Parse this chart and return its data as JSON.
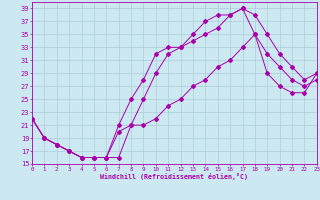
{
  "xlabel": "Windchill (Refroidissement éolien,°C)",
  "bg_color": "#cce8f0",
  "grid_color": "#aaccd8",
  "line_color": "#aa00aa",
  "xlim": [
    0,
    23
  ],
  "ylim": [
    15,
    40
  ],
  "xticks": [
    0,
    1,
    2,
    3,
    4,
    5,
    6,
    7,
    8,
    9,
    10,
    11,
    12,
    13,
    14,
    15,
    16,
    17,
    18,
    19,
    20,
    21,
    22,
    23
  ],
  "yticks": [
    15,
    17,
    19,
    21,
    23,
    25,
    27,
    29,
    31,
    33,
    35,
    37,
    39
  ],
  "line1_x": [
    0,
    1,
    2,
    3,
    4,
    5,
    6,
    7,
    8,
    9,
    10,
    11,
    12,
    13,
    14,
    15,
    16,
    17,
    18,
    19,
    20,
    21,
    22,
    23
  ],
  "line1_y": [
    22,
    19,
    18,
    17,
    16,
    16,
    16,
    20,
    21,
    25,
    29,
    32,
    33,
    35,
    37,
    38,
    38,
    39,
    38,
    35,
    32,
    30,
    28,
    29
  ],
  "line2_x": [
    0,
    1,
    2,
    3,
    4,
    5,
    6,
    7,
    8,
    9,
    10,
    11,
    12,
    13,
    14,
    15,
    16,
    17,
    18,
    19,
    20,
    21,
    22,
    23
  ],
  "line2_y": [
    22,
    19,
    18,
    17,
    16,
    16,
    16,
    21,
    25,
    28,
    32,
    33,
    33,
    34,
    35,
    36,
    38,
    39,
    35,
    29,
    27,
    26,
    26,
    29
  ],
  "line3_x": [
    0,
    1,
    2,
    3,
    4,
    5,
    6,
    7,
    8,
    9,
    10,
    11,
    12,
    13,
    14,
    15,
    16,
    17,
    18,
    19,
    20,
    21,
    22,
    23
  ],
  "line3_y": [
    22,
    19,
    18,
    17,
    16,
    16,
    16,
    16,
    21,
    21,
    22,
    24,
    25,
    27,
    28,
    30,
    31,
    33,
    35,
    32,
    30,
    28,
    27,
    28
  ]
}
